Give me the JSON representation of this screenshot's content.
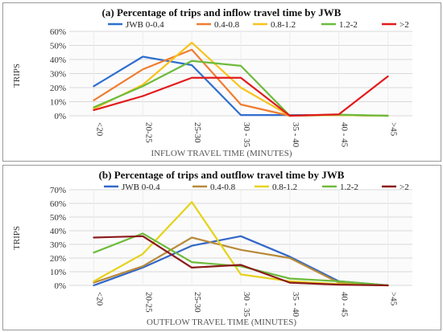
{
  "chart_data": [
    {
      "type": "line",
      "title": "(a) Percentage of trips and inflow travel time by JWB",
      "xlabel": "INFLOW TRAVEL TIME (MINUTES)",
      "ylabel": "TRIPS",
      "categories": [
        "<20",
        "20-25",
        "25-30",
        "30 - 35",
        "35 - 40",
        "40 - 45",
        ">45"
      ],
      "ylim": [
        0,
        60
      ],
      "yticks": [
        "0%",
        "10%",
        "20%",
        "30%",
        "40%",
        "50%",
        "60%"
      ],
      "grid": true,
      "legend_position": "top",
      "series": [
        {
          "name": "JWB 0-0.4",
          "color": "#2f6fcf",
          "values": [
            21,
            42,
            36,
            0.5,
            0.5,
            0.5,
            0
          ]
        },
        {
          "name": "0.4-0.8",
          "color": "#f07c30",
          "values": [
            11,
            33,
            47,
            8,
            0,
            0.5,
            0
          ]
        },
        {
          "name": "0.8-1.2",
          "color": "#f7c31c",
          "values": [
            5,
            22,
            52,
            20,
            0,
            0.5,
            0
          ]
        },
        {
          "name": "1.2-2",
          "color": "#6dbb3c",
          "values": [
            6,
            21,
            39,
            35.5,
            0,
            0.8,
            0
          ]
        },
        {
          "name": ">2",
          "color": "#e31a1c",
          "values": [
            4,
            14,
            27,
            27,
            0,
            1,
            28
          ]
        }
      ]
    },
    {
      "type": "line",
      "title": "(b) Percentage of trips and outflow travel time by JWB",
      "xlabel": "OUTFLOW TRAVEL TIME (MINUTES)",
      "ylabel": "TRIPS",
      "categories": [
        "<20",
        "20-25",
        "25-30",
        "30 - 35",
        "35 - 40",
        "40 - 45",
        ">45"
      ],
      "ylim": [
        0,
        70
      ],
      "yticks": [
        "0%",
        "10%",
        "20%",
        "30%",
        "40%",
        "50%",
        "60%",
        "70%"
      ],
      "grid": true,
      "legend_position": "top",
      "series": [
        {
          "name": "JWB 0-0.4",
          "color": "#3367c8",
          "values": [
            0,
            13,
            29,
            36,
            21,
            3,
            0
          ]
        },
        {
          "name": "0.4-0.8",
          "color": "#b88a3a",
          "values": [
            2,
            14,
            35,
            26,
            20,
            2,
            0
          ]
        },
        {
          "name": "0.8-1.2",
          "color": "#e6d21a",
          "values": [
            3,
            23,
            61,
            8,
            3,
            1,
            0
          ]
        },
        {
          "name": "1.2-2",
          "color": "#6dbb3c",
          "values": [
            24,
            38,
            17,
            14,
            5,
            3,
            0
          ]
        },
        {
          "name": ">2",
          "color": "#8b1a1a",
          "values": [
            35,
            36,
            13,
            15,
            2,
            0.5,
            0
          ]
        }
      ]
    }
  ]
}
